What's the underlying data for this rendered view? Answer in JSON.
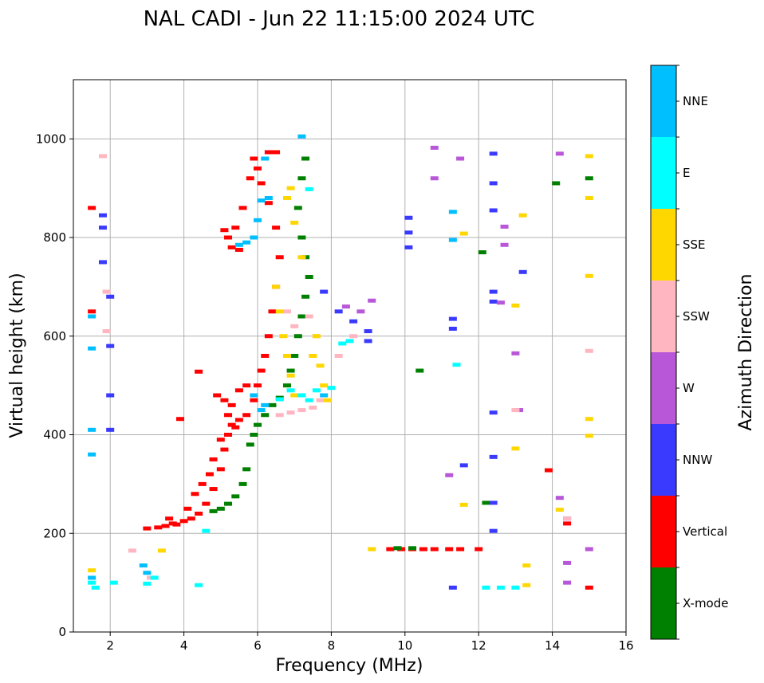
{
  "chart_data": {
    "type": "scatter",
    "title": "NAL CADI - Jun 22 11:15:00 2024 UTC",
    "xlabel": "Frequency (MHz)",
    "ylabel": "Virtual height (km)",
    "xlim": [
      1,
      16
    ],
    "ylim": [
      0,
      1120
    ],
    "xticks": [
      2,
      4,
      6,
      8,
      10,
      12,
      14,
      16
    ],
    "yticks": [
      0,
      200,
      400,
      600,
      800,
      1000
    ],
    "grid": true,
    "colorbar": {
      "label": "Azimuth Direction",
      "categories": [
        {
          "name": "X-mode",
          "color": "#008000"
        },
        {
          "name": "Vertical",
          "color": "#ff0000"
        },
        {
          "name": "NNW",
          "color": "#3a3aff"
        },
        {
          "name": "W",
          "color": "#b857d8"
        },
        {
          "name": "SSW",
          "color": "#ffb6c1"
        },
        {
          "name": "SSE",
          "color": "#ffd700"
        },
        {
          "name": "E",
          "color": "#00ffff"
        },
        {
          "name": "NNE",
          "color": "#00bfff"
        }
      ]
    },
    "traces": [
      {
        "name": "Vertical",
        "points": [
          [
            3.0,
            210
          ],
          [
            3.3,
            212
          ],
          [
            3.5,
            215
          ],
          [
            3.6,
            230
          ],
          [
            3.7,
            220
          ],
          [
            3.8,
            218
          ],
          [
            4.0,
            225
          ],
          [
            4.2,
            230
          ],
          [
            4.4,
            240
          ],
          [
            4.6,
            260
          ],
          [
            4.8,
            290
          ],
          [
            5.0,
            330
          ],
          [
            5.1,
            370
          ],
          [
            5.2,
            400
          ],
          [
            5.3,
            420
          ],
          [
            5.5,
            430
          ],
          [
            5.7,
            440
          ],
          [
            5.9,
            470
          ],
          [
            6.0,
            500
          ],
          [
            6.1,
            530
          ],
          [
            6.2,
            560
          ],
          [
            6.3,
            600
          ],
          [
            6.4,
            650
          ],
          [
            6.5,
            700
          ],
          [
            6.6,
            760
          ],
          [
            6.5,
            820
          ],
          [
            6.3,
            870
          ],
          [
            6.1,
            910
          ],
          [
            6.0,
            940
          ],
          [
            5.9,
            960
          ],
          [
            5.8,
            920
          ],
          [
            5.6,
            860
          ],
          [
            5.4,
            820
          ],
          [
            5.2,
            800
          ],
          [
            5.1,
            815
          ],
          [
            5.3,
            780
          ],
          [
            5.5,
            775
          ]
        ]
      },
      {
        "name": "Vertical",
        "points": [
          [
            4.9,
            480
          ],
          [
            5.1,
            470
          ],
          [
            5.3,
            460
          ],
          [
            5.5,
            490
          ],
          [
            5.7,
            500
          ],
          [
            5.2,
            440
          ],
          [
            5.4,
            415
          ],
          [
            5.0,
            390
          ],
          [
            4.8,
            350
          ],
          [
            4.7,
            320
          ],
          [
            4.5,
            300
          ],
          [
            4.3,
            280
          ],
          [
            4.1,
            250
          ],
          [
            3.9,
            432
          ],
          [
            4.4,
            528
          ],
          [
            1.5,
            860
          ],
          [
            1.5,
            650
          ]
        ]
      },
      {
        "name": "Vertical",
        "points": [
          [
            9.6,
            168
          ],
          [
            9.9,
            168
          ],
          [
            10.2,
            168
          ],
          [
            10.5,
            168
          ],
          [
            10.8,
            168
          ],
          [
            11.2,
            168
          ],
          [
            11.5,
            168
          ],
          [
            12.0,
            168
          ],
          [
            13.9,
            328
          ],
          [
            14.4,
            220
          ],
          [
            15.0,
            90
          ],
          [
            6.3,
            973
          ],
          [
            6.5,
            973
          ]
        ]
      },
      {
        "name": "X-mode",
        "points": [
          [
            4.8,
            245
          ],
          [
            5.0,
            250
          ],
          [
            5.2,
            260
          ],
          [
            5.4,
            275
          ],
          [
            5.6,
            300
          ],
          [
            5.7,
            330
          ],
          [
            5.8,
            380
          ],
          [
            5.9,
            400
          ],
          [
            6.0,
            420
          ],
          [
            6.2,
            440
          ],
          [
            6.4,
            460
          ],
          [
            6.6,
            475
          ],
          [
            6.8,
            500
          ],
          [
            6.9,
            530
          ],
          [
            7.0,
            560
          ],
          [
            7.1,
            600
          ],
          [
            7.2,
            640
          ],
          [
            7.3,
            680
          ],
          [
            7.4,
            720
          ],
          [
            7.3,
            760
          ],
          [
            7.2,
            800
          ],
          [
            7.1,
            860
          ],
          [
            7.2,
            920
          ],
          [
            7.3,
            960
          ],
          [
            9.8,
            170
          ],
          [
            10.2,
            170
          ],
          [
            10.4,
            530
          ],
          [
            12.1,
            770
          ],
          [
            12.2,
            262
          ],
          [
            14.1,
            910
          ],
          [
            15.0,
            920
          ]
        ]
      },
      {
        "name": "NNW",
        "points": [
          [
            1.8,
            845
          ],
          [
            1.8,
            820
          ],
          [
            1.8,
            750
          ],
          [
            2.0,
            680
          ],
          [
            2.0,
            580
          ],
          [
            2.0,
            480
          ],
          [
            2.0,
            410
          ],
          [
            7.8,
            690
          ],
          [
            8.2,
            650
          ],
          [
            8.6,
            630
          ],
          [
            9.0,
            610
          ],
          [
            9.0,
            590
          ],
          [
            10.1,
            840
          ],
          [
            10.1,
            810
          ],
          [
            10.1,
            780
          ],
          [
            11.3,
            615
          ],
          [
            11.3,
            635
          ],
          [
            11.3,
            90
          ],
          [
            11.6,
            338
          ],
          [
            12.4,
            970
          ],
          [
            12.4,
            910
          ],
          [
            12.4,
            855
          ],
          [
            12.4,
            690
          ],
          [
            12.4,
            670
          ],
          [
            12.4,
            445
          ],
          [
            12.4,
            355
          ],
          [
            12.4,
            262
          ],
          [
            12.4,
            205
          ],
          [
            13.2,
            730
          ],
          [
            14.4,
            230
          ]
        ]
      },
      {
        "name": "W",
        "points": [
          [
            8.4,
            660
          ],
          [
            8.8,
            650
          ],
          [
            9.1,
            672
          ],
          [
            13.0,
            565
          ],
          [
            13.1,
            450
          ],
          [
            12.6,
            668
          ],
          [
            12.7,
            785
          ],
          [
            12.7,
            822
          ],
          [
            14.2,
            970
          ],
          [
            14.2,
            272
          ],
          [
            14.4,
            140
          ],
          [
            14.4,
            100
          ],
          [
            15.0,
            168
          ],
          [
            10.8,
            982
          ],
          [
            10.8,
            920
          ],
          [
            11.2,
            318
          ],
          [
            11.5,
            960
          ]
        ]
      },
      {
        "name": "SSW",
        "points": [
          [
            6.6,
            440
          ],
          [
            6.9,
            445
          ],
          [
            7.2,
            450
          ],
          [
            7.5,
            455
          ],
          [
            7.7,
            470
          ],
          [
            6.8,
            650
          ],
          [
            7.0,
            620
          ],
          [
            7.4,
            640
          ],
          [
            7.6,
            600
          ],
          [
            8.2,
            560
          ],
          [
            8.6,
            600
          ],
          [
            1.8,
            965
          ],
          [
            1.9,
            690
          ],
          [
            1.9,
            610
          ],
          [
            15.0,
            570
          ],
          [
            13.0,
            450
          ],
          [
            14.4,
            230
          ],
          [
            3.1,
            110
          ],
          [
            2.6,
            165
          ]
        ]
      },
      {
        "name": "SSE",
        "points": [
          [
            6.5,
            700
          ],
          [
            6.6,
            650
          ],
          [
            6.7,
            600
          ],
          [
            6.8,
            560
          ],
          [
            6.9,
            520
          ],
          [
            7.0,
            480
          ],
          [
            7.5,
            560
          ],
          [
            7.7,
            540
          ],
          [
            7.8,
            500
          ],
          [
            7.9,
            470
          ],
          [
            7.6,
            600
          ],
          [
            7.2,
            760
          ],
          [
            7.0,
            830
          ],
          [
            6.8,
            880
          ],
          [
            6.9,
            900
          ],
          [
            15.0,
            965
          ],
          [
            15.0,
            880
          ],
          [
            15.0,
            722
          ],
          [
            15.0,
            432
          ],
          [
            15.0,
            398
          ],
          [
            13.2,
            845
          ],
          [
            13.3,
            135
          ],
          [
            13.3,
            95
          ],
          [
            13.0,
            372
          ],
          [
            13.0,
            662
          ],
          [
            11.6,
            258
          ],
          [
            11.6,
            808
          ],
          [
            14.2,
            248
          ],
          [
            9.1,
            168
          ],
          [
            3.4,
            165
          ],
          [
            1.5,
            125
          ]
        ]
      },
      {
        "name": "E",
        "points": [
          [
            6.6,
            472
          ],
          [
            6.9,
            490
          ],
          [
            7.2,
            480
          ],
          [
            7.4,
            470
          ],
          [
            7.6,
            490
          ],
          [
            8.0,
            495
          ],
          [
            8.3,
            585
          ],
          [
            8.5,
            590
          ],
          [
            1.5,
            100
          ],
          [
            1.6,
            90
          ],
          [
            2.1,
            100
          ],
          [
            3.0,
            98
          ],
          [
            3.2,
            110
          ],
          [
            4.4,
            95
          ],
          [
            4.6,
            205
          ],
          [
            12.2,
            90
          ],
          [
            12.6,
            90
          ],
          [
            13.0,
            90
          ],
          [
            11.4,
            542
          ],
          [
            7.4,
            898
          ]
        ]
      },
      {
        "name": "NNE",
        "points": [
          [
            5.5,
            785
          ],
          [
            5.7,
            790
          ],
          [
            5.9,
            800
          ],
          [
            6.0,
            835
          ],
          [
            6.1,
            875
          ],
          [
            6.2,
            960
          ],
          [
            6.3,
            880
          ],
          [
            7.2,
            1005
          ],
          [
            6.2,
            460
          ],
          [
            6.1,
            450
          ],
          [
            5.9,
            480
          ],
          [
            7.8,
            480
          ],
          [
            1.5,
            360
          ],
          [
            1.5,
            410
          ],
          [
            1.5,
            575
          ],
          [
            1.5,
            640
          ],
          [
            3.0,
            120
          ],
          [
            2.9,
            135
          ],
          [
            1.5,
            110
          ],
          [
            11.3,
            852
          ],
          [
            11.3,
            795
          ]
        ]
      }
    ]
  }
}
